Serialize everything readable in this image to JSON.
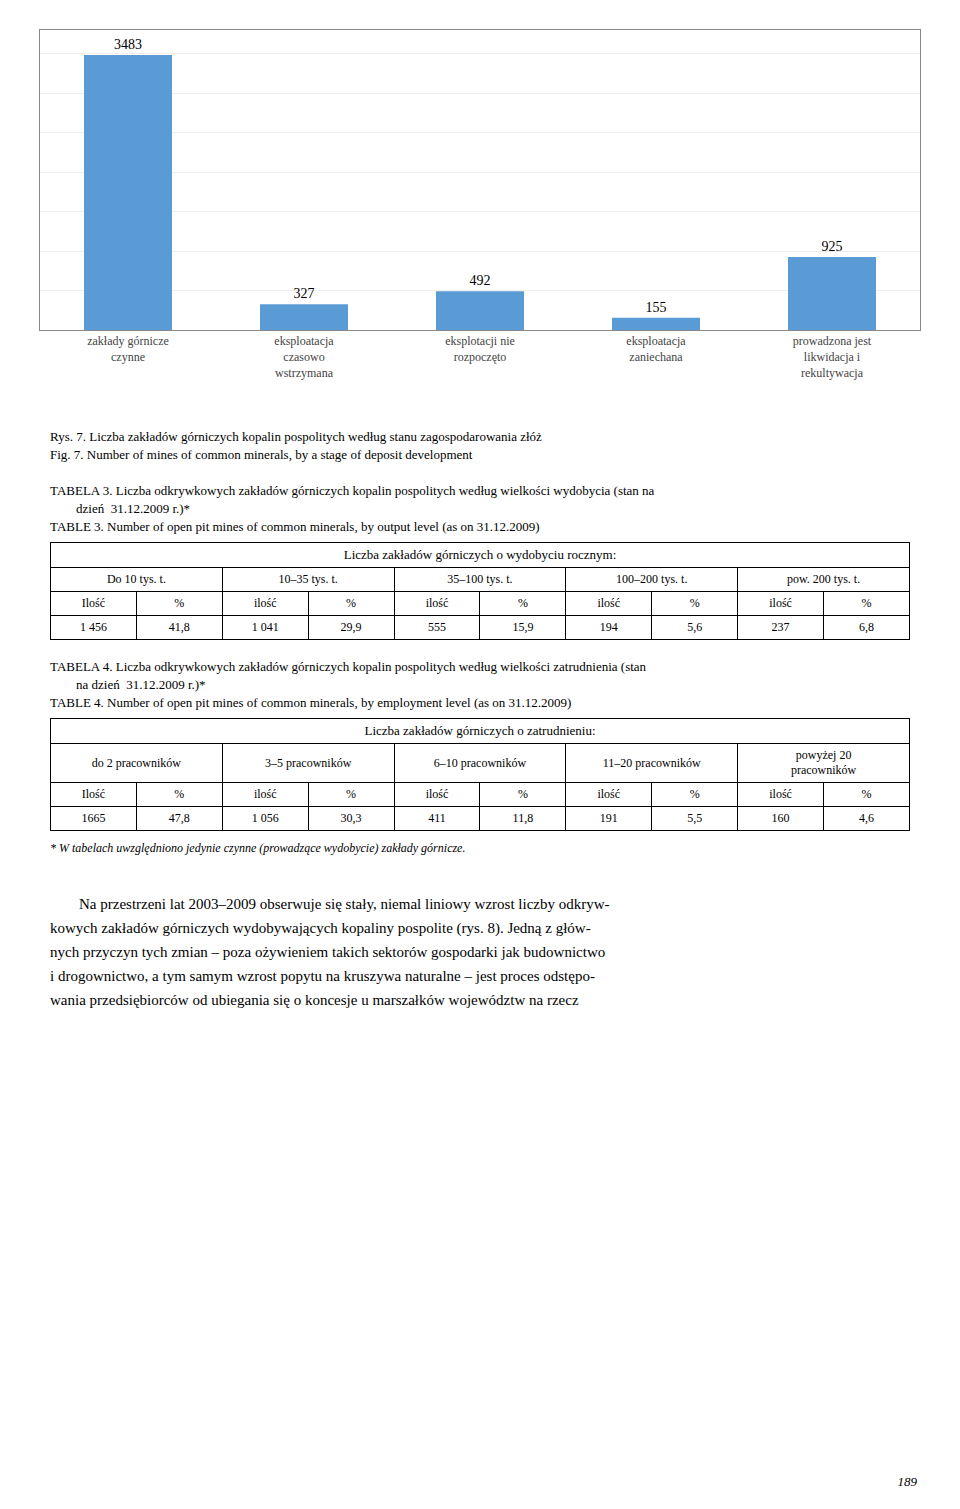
{
  "chart_data": {
    "type": "bar",
    "categories": [
      "zakłady górnicze\nczynne",
      "eksploatacja\nczasowo\nwstrzymana",
      "eksplotacji nie\nrozpoczęto",
      "eksploatacja\nzaniechana",
      "prowadzona jest\nlikwidacja i\nrekultywacja"
    ],
    "values": [
      3483,
      327,
      492,
      155,
      925
    ],
    "color": "#5B9BD5",
    "ylim": [
      0,
      3800
    ],
    "yticks": [
      0,
      500,
      1000,
      1500,
      2000,
      2500,
      3000,
      3500
    ],
    "grid": true,
    "data_labels": true,
    "tick_labels": "x"
  },
  "captions": [
    "Rys. 7. Liczba zakładów górniczych kopalin pospolitych według stanu zagospodarowania złóż",
    "Fig. 7. Number of mines of common minerals, by a stage of deposit development"
  ],
  "tables": [
    {
      "title_lines": [
        "TABELA 3. Liczba odkrywkowych zakładów górniczych kopalin pospolitych według wielkości wydobycia (stan na",
        "        dzień  31.12.2009 r.)*",
        "TABLE 3. Number of open pit mines of common minerals, by output level (as on 31.12.2009)"
      ],
      "header": "Liczba zakładów górniczych o wydobyciu rocznym:",
      "columns": [
        "Do 10 tys. t.",
        "10–35  tys. t.",
        "35–100  tys. t.",
        "100–200 tys. t.",
        "pow. 200 tys. t."
      ],
      "subheaders": [
        "Ilość",
        "%",
        "ilość",
        "%",
        "ilość",
        "%",
        "ilość",
        "%",
        "ilość",
        "%"
      ],
      "data": [
        "1 456",
        "41,8",
        "1 041",
        "29,9",
        "555",
        "15,9",
        "194",
        "5,6",
        "237",
        "6,8"
      ]
    },
    {
      "title_lines": [
        "TABELA 4. Liczba odkrywkowych zakładów górniczych kopalin pospolitych według wielkości zatrudnienia (stan",
        "        na dzień  31.12.2009 r.)*",
        "TABLE 4. Number of open pit mines of common minerals, by employment level (as on 31.12.2009)"
      ],
      "header": "Liczba zakładów górniczych o zatrudnieniu:",
      "columns": [
        "do 2 pracowników",
        "3–5 pracowników",
        "6–10 pracowników",
        "11–20 pracowników",
        "powyżej 20\npracowników"
      ],
      "subheaders": [
        "Ilość",
        "%",
        "ilość",
        "%",
        "ilość",
        "%",
        "ilość",
        "%",
        "ilość",
        "%"
      ],
      "data": [
        "1665",
        "47,8",
        "1 056",
        "30,3",
        "411",
        "11,8",
        "191",
        "5,5",
        "160",
        "4,6"
      ]
    }
  ],
  "footnote": "* W tabelach uwzględniono jedynie czynne (prowadzące wydobycie) zakłady górnicze.",
  "paragraph_lines": [
    "Na przestrzeni lat 2003–2009 obserwuje się stały, niemal liniowy wzrost liczby odkryw-",
    "kowych zakładów górniczych wydobywających kopaliny pospolite (rys. 8). Jedną z głów-",
    "nych przyczyn tych zmian – poza ożywieniem takich sektorów gospodarki jak budownictwo",
    "i drogownictwo, a tym samym wzrost popytu na kruszywa naturalne – jest proces odstępo-",
    "wania przedsiębiorców od ubiegania się o koncesje u marszałków województw na rzecz"
  ],
  "page_number": "189"
}
